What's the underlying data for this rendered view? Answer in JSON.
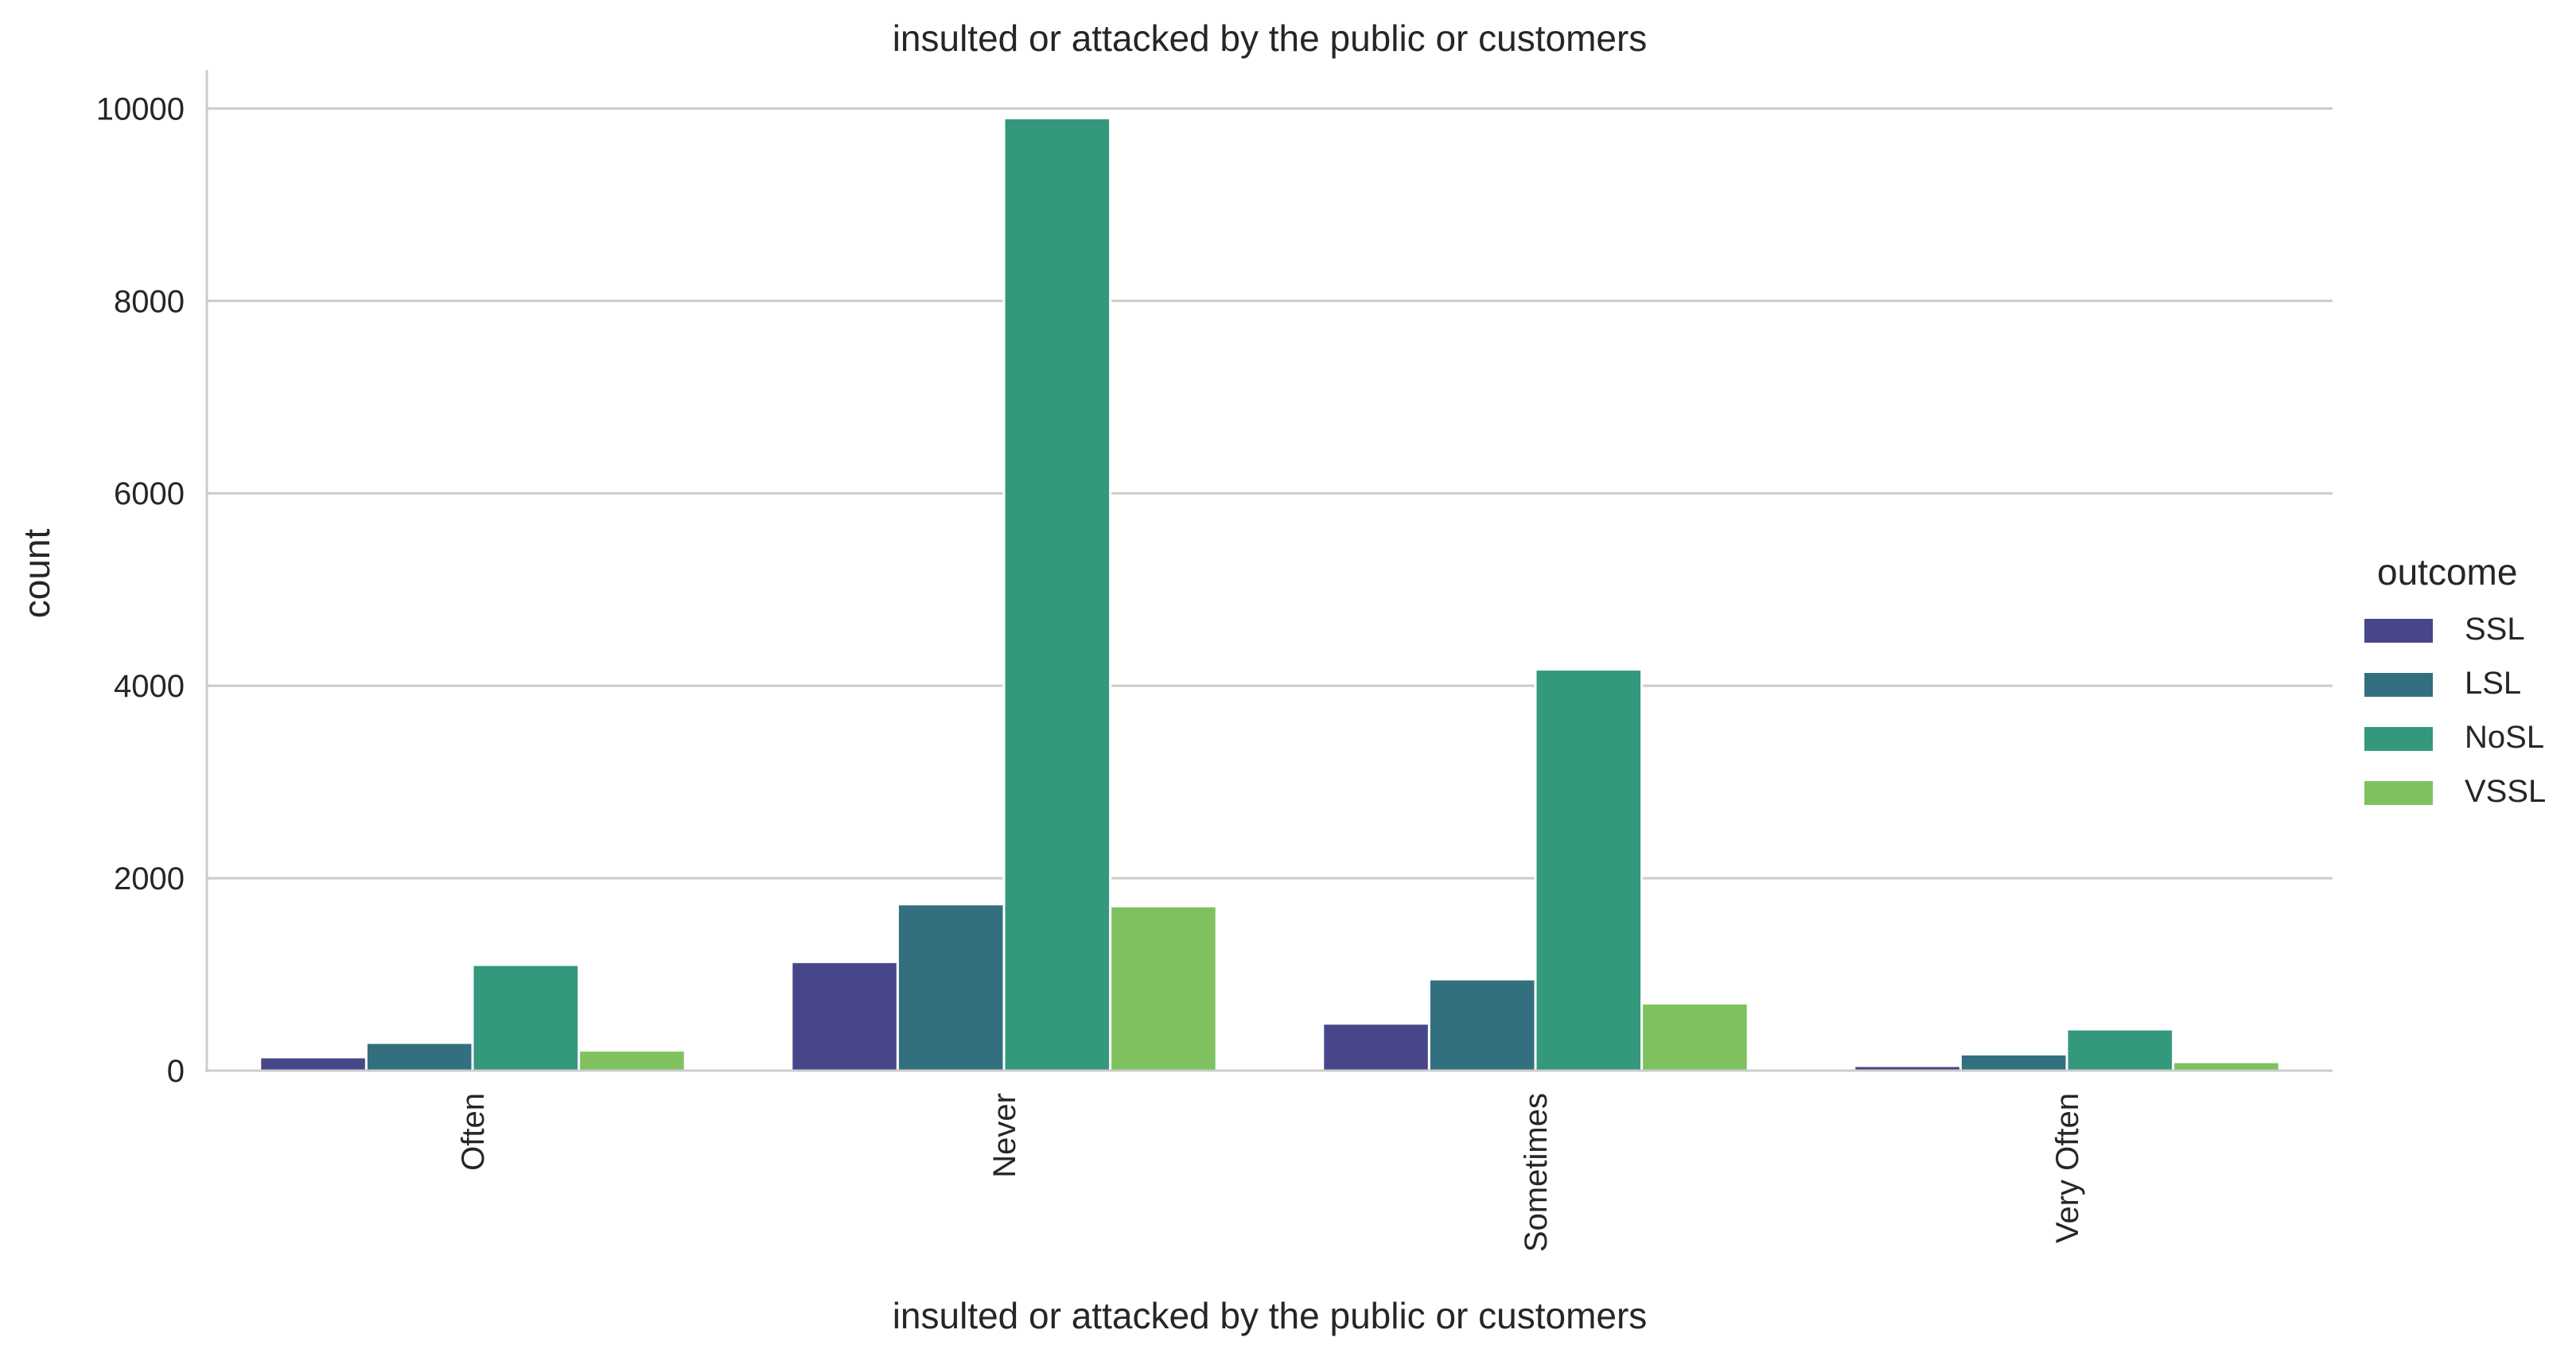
{
  "chart_data": {
    "type": "bar",
    "title": "insulted or attacked by the public or customers",
    "xlabel": "insulted or attacked by the public or customers",
    "ylabel": "count",
    "categories": [
      "Often",
      "Never",
      "Sometimes",
      "Very Often"
    ],
    "ylim": [
      0,
      10400
    ],
    "yticks": [
      0,
      2000,
      4000,
      6000,
      8000,
      10000
    ],
    "grid": "horizontal",
    "legend": {
      "title": "outcome",
      "placement": "right"
    },
    "series": [
      {
        "name": "SSL",
        "color": "#48468a",
        "values": [
          140,
          1130,
          490,
          50
        ]
      },
      {
        "name": "LSL",
        "color": "#33707f",
        "values": [
          290,
          1730,
          950,
          170
        ]
      },
      {
        "name": "NoSL",
        "color": "#34987c",
        "values": [
          1100,
          9900,
          4170,
          430
        ]
      },
      {
        "name": "VSSL",
        "color": "#7fc15f",
        "values": [
          210,
          1710,
          700,
          90
        ]
      }
    ]
  }
}
